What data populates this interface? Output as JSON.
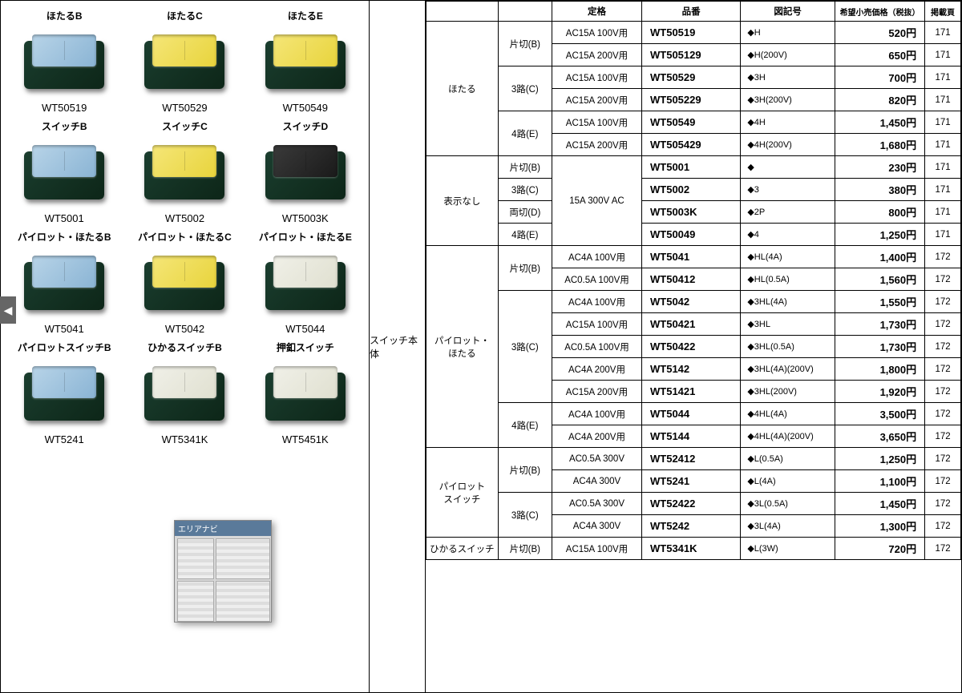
{
  "center_label": "スイッチ本体",
  "side_tab": "◀",
  "overlay_title": "エリアナビ",
  "products": [
    {
      "title": "ほたるB",
      "code": "WT50519",
      "color": "blue"
    },
    {
      "title": "ほたるC",
      "code": "WT50529",
      "color": "yellow"
    },
    {
      "title": "ほたるE",
      "code": "WT50549",
      "color": "yellow"
    },
    {
      "title": "スイッチB",
      "code": "WT5001",
      "color": "blue"
    },
    {
      "title": "スイッチC",
      "code": "WT5002",
      "color": "yellow"
    },
    {
      "title": "スイッチD",
      "code": "WT5003K",
      "color": "black"
    },
    {
      "title": "パイロット・ほたるB",
      "code": "WT5041",
      "color": "blue"
    },
    {
      "title": "パイロット・ほたるC",
      "code": "WT5042",
      "color": "yellow"
    },
    {
      "title": "パイロット・ほたるE",
      "code": "WT5044",
      "color": "pale"
    },
    {
      "title": "パイロットスイッチB",
      "code": "WT5241",
      "color": "blue"
    },
    {
      "title": "ひかるスイッチB",
      "code": "WT5341K",
      "color": "pale"
    },
    {
      "title": "押釦スイッチ",
      "code": "WT5451K",
      "color": "pale"
    }
  ],
  "headers": {
    "cat": "",
    "type": "",
    "rate": "定格",
    "part": "品番",
    "sym": "図記号",
    "price": "希望小売価格（税抜）",
    "page": "掲載頁"
  },
  "groups": [
    {
      "cat": "ほたる",
      "subs": [
        {
          "type": "片切(B)",
          "rows": [
            {
              "rate": "AC15A 100V用",
              "part": "WT50519",
              "sym": "◆H",
              "price": "520円",
              "page": "171"
            },
            {
              "rate": "AC15A 200V用",
              "part": "WT505129",
              "sym": "◆H(200V)",
              "price": "650円",
              "page": "171"
            }
          ]
        },
        {
          "type": "3路(C)",
          "rows": [
            {
              "rate": "AC15A 100V用",
              "part": "WT50529",
              "sym": "◆3H",
              "price": "700円",
              "page": "171"
            },
            {
              "rate": "AC15A 200V用",
              "part": "WT505229",
              "sym": "◆3H(200V)",
              "price": "820円",
              "page": "171"
            }
          ]
        },
        {
          "type": "4路(E)",
          "rows": [
            {
              "rate": "AC15A 100V用",
              "part": "WT50549",
              "sym": "◆4H",
              "price": "1,450円",
              "page": "171"
            },
            {
              "rate": "AC15A 200V用",
              "part": "WT505429",
              "sym": "◆4H(200V)",
              "price": "1,680円",
              "page": "171"
            }
          ]
        }
      ]
    },
    {
      "cat": "表示なし",
      "shared_rate": "15A 300V AC",
      "subs": [
        {
          "type": "片切(B)",
          "rows": [
            {
              "part": "WT5001",
              "sym": "◆",
              "price": "230円",
              "page": "171"
            }
          ]
        },
        {
          "type": "3路(C)",
          "rows": [
            {
              "part": "WT5002",
              "sym": "◆3",
              "price": "380円",
              "page": "171"
            }
          ]
        },
        {
          "type": "両切(D)",
          "rows": [
            {
              "part": "WT5003K",
              "sym": "◆2P",
              "price": "800円",
              "page": "171"
            }
          ]
        },
        {
          "type": "4路(E)",
          "rows": [
            {
              "part": "WT50049",
              "sym": "◆4",
              "price": "1,250円",
              "page": "171"
            }
          ]
        }
      ]
    },
    {
      "cat": "パイロット・\nほたる",
      "subs": [
        {
          "type": "片切(B)",
          "rows": [
            {
              "rate": "AC4A 100V用",
              "part": "WT5041",
              "sym": "◆HL(4A)",
              "price": "1,400円",
              "page": "172"
            },
            {
              "rate": "AC0.5A 100V用",
              "part": "WT50412",
              "sym": "◆HL(0.5A)",
              "price": "1,560円",
              "page": "172"
            }
          ]
        },
        {
          "type": "3路(C)",
          "rows": [
            {
              "rate": "AC4A 100V用",
              "part": "WT5042",
              "sym": "◆3HL(4A)",
              "price": "1,550円",
              "page": "172"
            },
            {
              "rate": "AC15A 100V用",
              "part": "WT50421",
              "sym": "◆3HL",
              "price": "1,730円",
              "page": "172"
            },
            {
              "rate": "AC0.5A 100V用",
              "part": "WT50422",
              "sym": "◆3HL(0.5A)",
              "price": "1,730円",
              "page": "172"
            },
            {
              "rate": "AC4A 200V用",
              "part": "WT5142",
              "sym": "◆3HL(4A)(200V)",
              "price": "1,800円",
              "page": "172"
            },
            {
              "rate": "AC15A 200V用",
              "part": "WT51421",
              "sym": "◆3HL(200V)",
              "price": "1,920円",
              "page": "172"
            }
          ]
        },
        {
          "type": "4路(E)",
          "rows": [
            {
              "rate": "AC4A 100V用",
              "part": "WT5044",
              "sym": "◆4HL(4A)",
              "price": "3,500円",
              "page": "172"
            },
            {
              "rate": "AC4A 200V用",
              "part": "WT5144",
              "sym": "◆4HL(4A)(200V)",
              "price": "3,650円",
              "page": "172"
            }
          ]
        }
      ]
    },
    {
      "cat": "パイロット\nスイッチ",
      "subs": [
        {
          "type": "片切(B)",
          "rows": [
            {
              "rate": "AC0.5A 300V",
              "part": "WT52412",
              "sym": "◆L(0.5A)",
              "price": "1,250円",
              "page": "172"
            },
            {
              "rate": "AC4A 300V",
              "part": "WT5241",
              "sym": "◆L(4A)",
              "price": "1,100円",
              "page": "172"
            }
          ]
        },
        {
          "type": "3路(C)",
          "rows": [
            {
              "rate": "AC0.5A 300V",
              "part": "WT52422",
              "sym": "◆3L(0.5A)",
              "price": "1,450円",
              "page": "172"
            },
            {
              "rate": "AC4A 300V",
              "part": "WT5242",
              "sym": "◆3L(4A)",
              "price": "1,300円",
              "page": "172"
            }
          ]
        }
      ]
    },
    {
      "cat": "ひかるスイッチ",
      "subs": [
        {
          "type": "片切(B)",
          "rows": [
            {
              "rate": "AC15A 100V用",
              "part": "WT5341K",
              "sym": "◆L(3W)",
              "price": "720円",
              "page": "172"
            }
          ]
        }
      ]
    }
  ],
  "colors": {
    "blue": "#a8c8e0",
    "yellow": "#eadb4a",
    "black": "#2b2b2b",
    "pale": "#efeee2",
    "body": "#14402c",
    "border": "#000000"
  }
}
